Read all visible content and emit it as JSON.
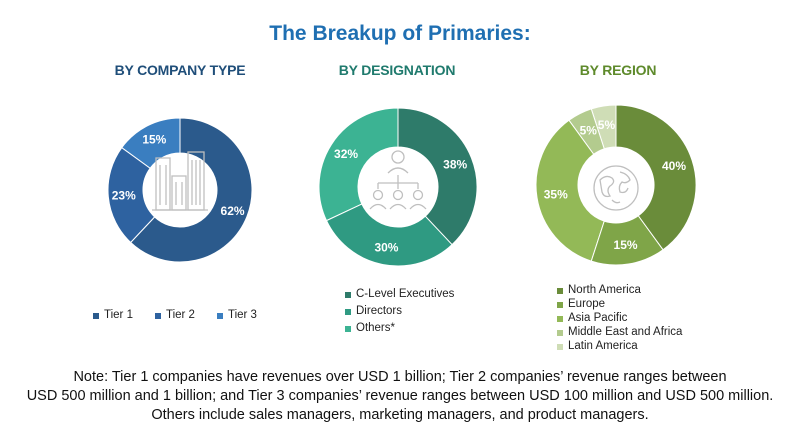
{
  "title": "The Breakup of Primaries:",
  "chart_data": [
    {
      "type": "pie",
      "title": "BY COMPANY TYPE",
      "title_color": "#1f4e79",
      "categories": [
        "Tier 1",
        "Tier 2",
        "Tier 3"
      ],
      "values": [
        62,
        23,
        15
      ],
      "labels": [
        "62%",
        "23%",
        "15%"
      ],
      "colors": [
        "#2b5a8c",
        "#2e62a0",
        "#3a7ec0"
      ],
      "icon": "buildings-icon",
      "legend_position": "bottom"
    },
    {
      "type": "pie",
      "title": "BY DESIGNATION",
      "title_color": "#1f7a6d",
      "categories": [
        "C-Level Executives",
        "Directors",
        "Others*"
      ],
      "values": [
        38,
        30,
        32
      ],
      "labels": [
        "38%",
        "30%",
        "32%"
      ],
      "colors": [
        "#2e7b6a",
        "#2f9a82",
        "#3cb393"
      ],
      "icon": "org-chart-icon",
      "legend_position": "bottom"
    },
    {
      "type": "pie",
      "title": "BY REGION",
      "title_color": "#5e8a2b",
      "categories": [
        "North America",
        "Europe",
        "Asia Pacific",
        "Middle East and Africa",
        "Latin America"
      ],
      "values": [
        40,
        15,
        35,
        5,
        5
      ],
      "labels": [
        "40%",
        "15%",
        "35%",
        "5%",
        "5%"
      ],
      "colors": [
        "#6a8c3a",
        "#7fa548",
        "#93b957",
        "#b3cb8e",
        "#cfddb6"
      ],
      "icon": "globe-icon",
      "legend_position": "bottom"
    }
  ],
  "note_lines": [
    "Note: Tier 1 companies have revenues over USD 1 billion; Tier 2 companies’ revenue ranges between",
    "USD 500 million and 1 billion; and Tier 3 companies’ revenue ranges between USD 100 million and USD 500 million.",
    "Others include sales managers, marketing managers, and product managers."
  ]
}
